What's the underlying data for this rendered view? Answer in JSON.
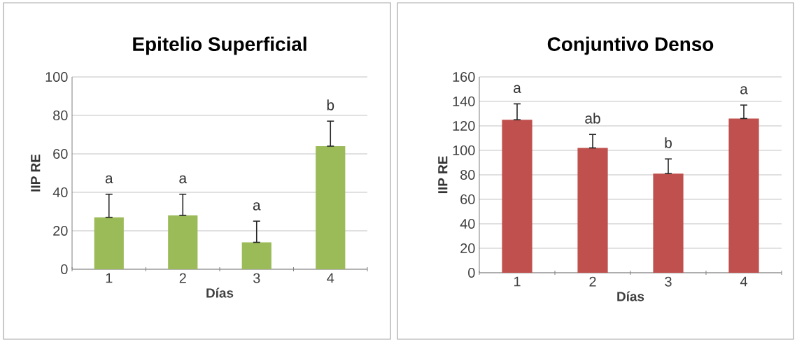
{
  "chart_data": [
    {
      "type": "bar",
      "title": "Epitelio Superficial",
      "xlabel": "Días",
      "ylabel": "IIP RE",
      "categories": [
        "1",
        "2",
        "3",
        "4"
      ],
      "values": [
        27,
        28,
        14,
        64
      ],
      "errors": [
        [
          27,
          39
        ],
        [
          28,
          39
        ],
        [
          14,
          25
        ],
        [
          64,
          77
        ]
      ],
      "color": "#9bbb59",
      "ylim": [
        0,
        100
      ],
      "yticks": [
        0,
        20,
        40,
        60,
        80,
        100
      ],
      "grid": "y",
      "annotations": [
        "a",
        "a",
        "a",
        "b"
      ]
    },
    {
      "type": "bar",
      "title": "Conjuntivo Denso",
      "xlabel": "Días",
      "ylabel": "IIP RE",
      "categories": [
        "1",
        "2",
        "3",
        "4"
      ],
      "values": [
        125,
        102,
        81,
        126
      ],
      "errors": [
        [
          125,
          138
        ],
        [
          102,
          113
        ],
        [
          81,
          93
        ],
        [
          126,
          137
        ]
      ],
      "color": "#c0504d",
      "ylim": [
        0,
        160
      ],
      "yticks": [
        0,
        20,
        40,
        60,
        80,
        100,
        120,
        140,
        160
      ],
      "grid": "y",
      "annotations": [
        "a",
        "ab",
        "b",
        "a"
      ]
    }
  ]
}
